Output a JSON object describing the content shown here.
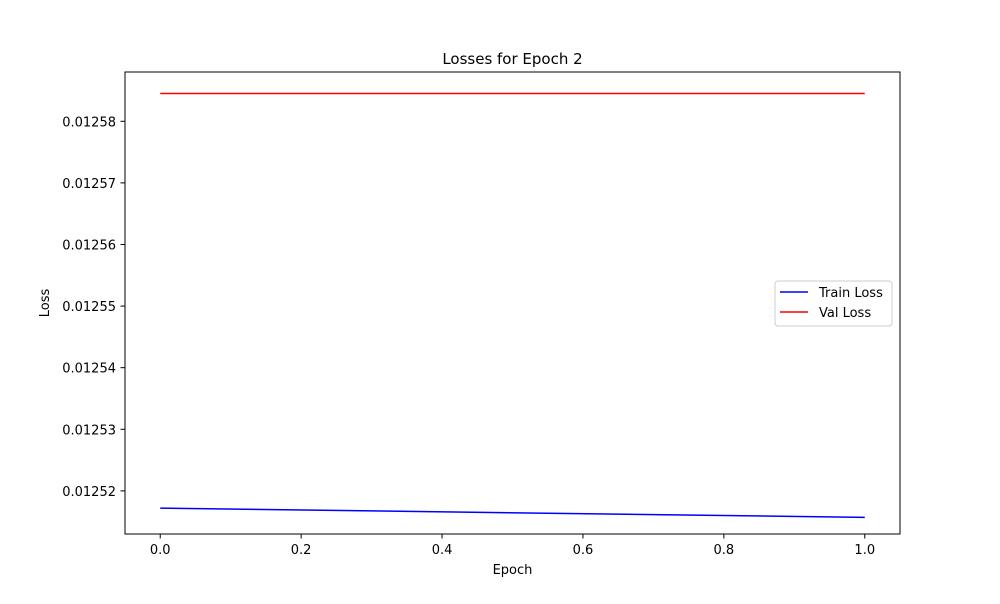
{
  "chart_data": {
    "type": "line",
    "title": "Losses for Epoch 2",
    "xlabel": "Epoch",
    "ylabel": "Loss",
    "xlim": [
      -0.05,
      1.05
    ],
    "ylim": [
      0.012513,
      0.012588
    ],
    "xticks": [
      0.0,
      0.2,
      0.4,
      0.6,
      0.8,
      1.0
    ],
    "xtick_labels": [
      "0.0",
      "0.2",
      "0.4",
      "0.6",
      "0.8",
      "1.0"
    ],
    "yticks": [
      0.01252,
      0.01253,
      0.01254,
      0.01255,
      0.01256,
      0.01257,
      0.01258
    ],
    "ytick_labels": [
      "0.01252",
      "0.01253",
      "0.01254",
      "0.01255",
      "0.01256",
      "0.01257",
      "0.01258"
    ],
    "grid": false,
    "legend_position": "center-right",
    "series": [
      {
        "name": "Train Loss",
        "color": "#0000ff",
        "x": [
          0,
          1
        ],
        "y": [
          0.0125172,
          0.0125157
        ]
      },
      {
        "name": "Val Loss",
        "color": "#ff0000",
        "x": [
          0,
          1
        ],
        "y": [
          0.0125845,
          0.0125845
        ]
      }
    ]
  }
}
